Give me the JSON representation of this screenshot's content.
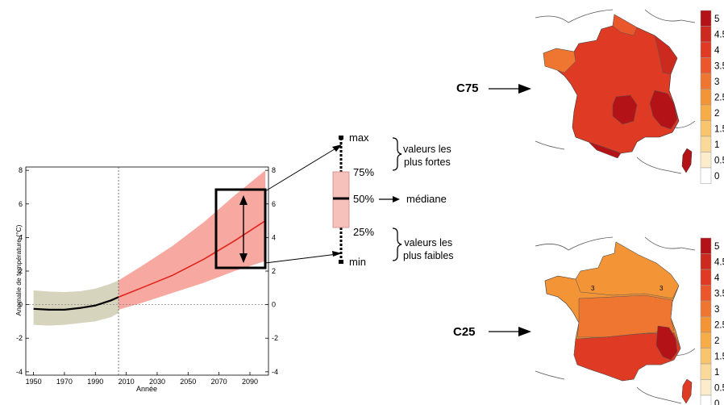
{
  "chart_data": {
    "type": "line",
    "xlabel": "Année",
    "ylabel": "Anomalie de température (°C)",
    "xlim": [
      1945,
      2102
    ],
    "ylim": [
      -4.2,
      8.2
    ],
    "x_ticks": [
      "1950",
      "1970",
      "1990",
      "2010",
      "2030",
      "2050",
      "2070",
      "2090"
    ],
    "x_tick_values": [
      1950,
      1970,
      1990,
      2010,
      2030,
      2050,
      2070,
      2090
    ],
    "y_ticks": [
      "-4",
      "-2",
      "0",
      "2",
      "4",
      "6",
      "8"
    ],
    "y_tick_values": [
      -4,
      -2,
      0,
      2,
      4,
      6,
      8
    ],
    "observed": {
      "x": [
        1950,
        1960,
        1970,
        1980,
        1990,
        2000,
        2005
      ],
      "median": [
        -0.25,
        -0.3,
        -0.3,
        -0.2,
        -0.05,
        0.25,
        0.45
      ],
      "low": [
        -1.2,
        -1.25,
        -1.2,
        -1.1,
        -1.0,
        -0.75,
        -0.5
      ],
      "high": [
        0.85,
        0.78,
        0.75,
        0.8,
        0.95,
        1.25,
        1.45
      ]
    },
    "projection": {
      "x": [
        2005,
        2020,
        2040,
        2060,
        2080,
        2100
      ],
      "median": [
        0.45,
        1.0,
        1.75,
        2.7,
        3.8,
        5.0
      ],
      "low": [
        -0.3,
        0.1,
        0.7,
        1.3,
        2.0,
        2.6
      ],
      "high": [
        1.45,
        2.3,
        3.5,
        4.9,
        6.5,
        8.0
      ]
    },
    "reference_year": 2005,
    "colors": {
      "observed_band": "#d7d4bd",
      "projection_band": "#f7a8a0",
      "observed_line": "#000000",
      "projection_line": "#e0231b"
    }
  },
  "boxplot": {
    "labels": {
      "max": "max",
      "q75": "75%",
      "q50": "50%",
      "q25": "25%",
      "min": "min"
    },
    "median_text": "médiane",
    "upper_text_1": "valeurs les",
    "upper_text_2": "plus fortes",
    "lower_text_1": "valeurs les",
    "lower_text_2": "plus faibles",
    "box_color": "#f6c0bb"
  },
  "maps": {
    "top_label": "C75",
    "bottom_label": "C25",
    "legend_values": [
      "5",
      "4.5",
      "4",
      "3.5",
      "3",
      "2.5",
      "2",
      "1.5",
      "1",
      "0.5",
      "0"
    ],
    "legend_colors": [
      "#b31217",
      "#cc2a1f",
      "#df3b24",
      "#e9572b",
      "#ef7630",
      "#f39437",
      "#f6ad47",
      "#f8c46d",
      "#fad99a",
      "#fdeccb",
      "#ffffff"
    ],
    "bottom_contour_labels": [
      "3",
      "3"
    ]
  }
}
